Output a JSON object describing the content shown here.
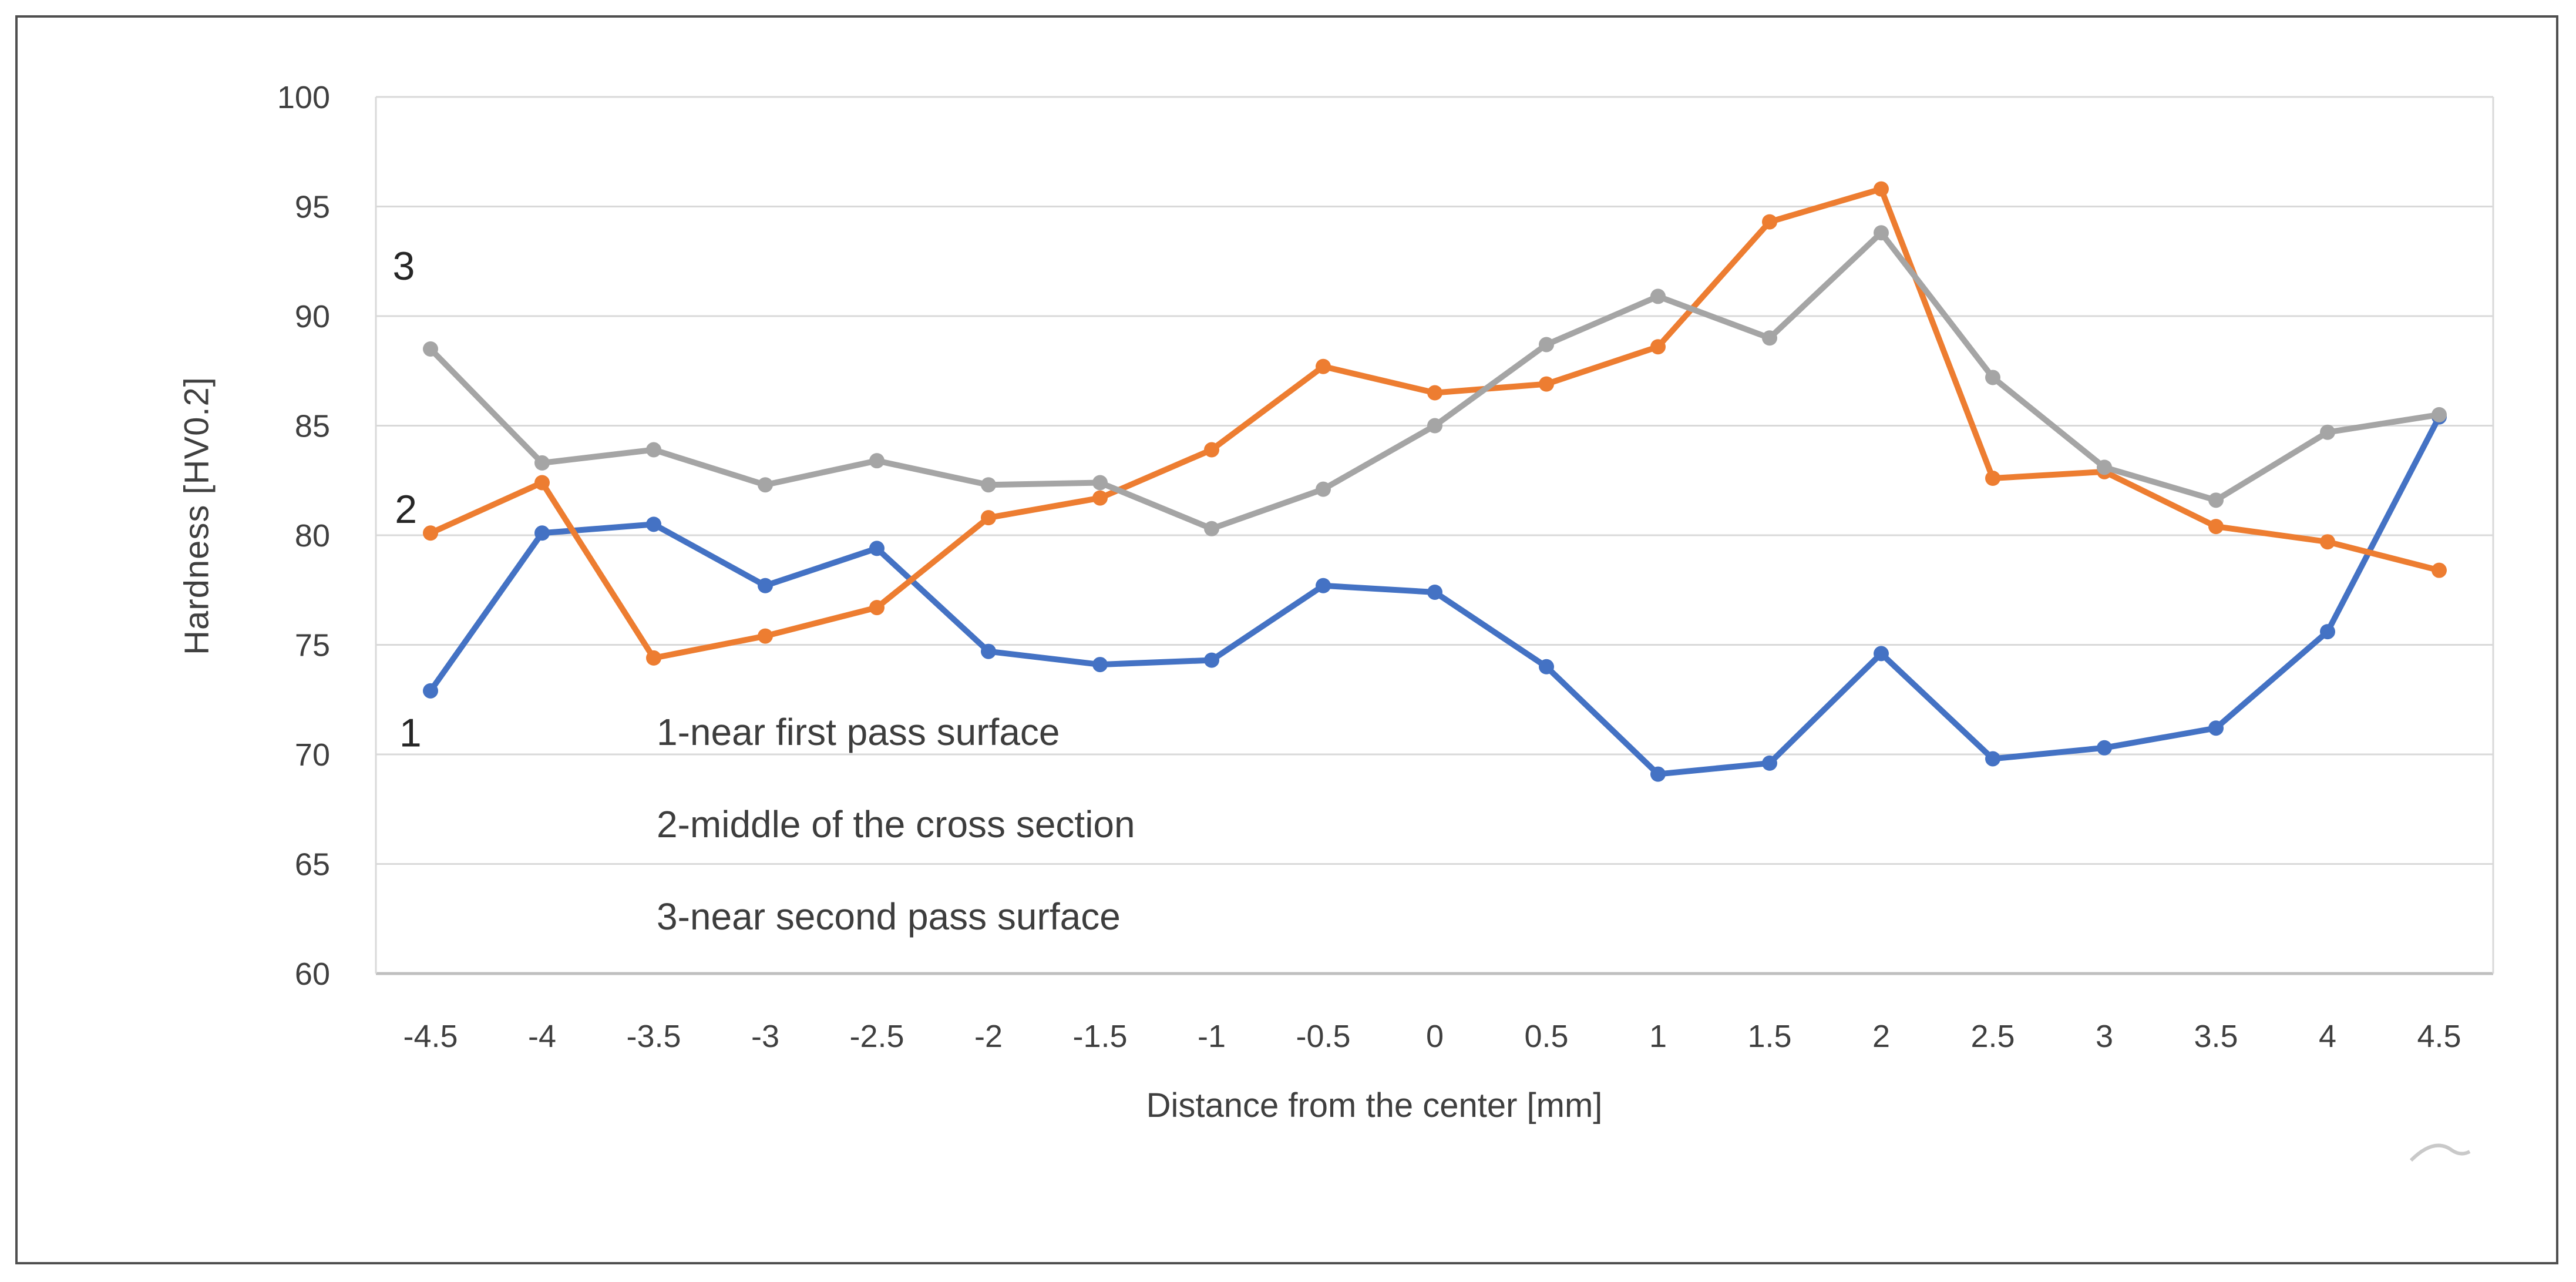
{
  "figure": {
    "background": "#ffffff",
    "border_color": "#4f4f4f"
  },
  "chart_data": {
    "type": "line",
    "title": "",
    "xlabel": "Distance from the center [mm]",
    "ylabel": "Hardness [HV0.2]",
    "x_categories": [
      "-4.5",
      "-4",
      "-3.5",
      "-3",
      "-2.5",
      "-2",
      "-1.5",
      "-1",
      "-0.5",
      "0",
      "0.5",
      "1",
      "1.5",
      "2",
      "2.5",
      "3",
      "3.5",
      "4",
      "4.5"
    ],
    "x_values": [
      -4.5,
      -4,
      -3.5,
      -3,
      -2.5,
      -2,
      -1.5,
      -1,
      -0.5,
      0,
      0.5,
      1,
      1.5,
      2,
      2.5,
      3,
      3.5,
      4,
      4.5
    ],
    "ylim": [
      60,
      100
    ],
    "y_ticks": [
      60,
      65,
      70,
      75,
      80,
      85,
      90,
      95,
      100
    ],
    "grid": true,
    "gridline_color": "#d9d9d9",
    "axis_line_color": "#bfbfbf",
    "tick_label_color": "#3f3f3f",
    "legend_position": "inside-plot-text-annotations",
    "series": [
      {
        "name": "1-near first pass surface",
        "point_label": "1",
        "color": "#4472C4",
        "values": [
          72.9,
          80.1,
          80.5,
          77.7,
          79.4,
          74.7,
          74.1,
          74.3,
          77.7,
          77.4,
          74.0,
          69.1,
          69.6,
          74.6,
          69.8,
          70.3,
          71.2,
          75.6,
          85.4
        ]
      },
      {
        "name": "2-middle of the cross section",
        "point_label": "2",
        "color": "#ED7D31",
        "values": [
          80.1,
          82.4,
          74.4,
          75.4,
          76.7,
          80.8,
          81.7,
          83.9,
          87.7,
          86.5,
          86.9,
          88.6,
          94.3,
          95.8,
          82.6,
          82.9,
          80.4,
          79.7,
          78.4
        ]
      },
      {
        "name": "3-near second pass surface",
        "point_label": "3",
        "color": "#A5A5A5",
        "values": [
          88.5,
          83.3,
          83.9,
          82.3,
          83.4,
          82.3,
          82.4,
          80.3,
          82.1,
          85.0,
          88.7,
          90.9,
          89.0,
          93.8,
          87.2,
          83.1,
          81.6,
          84.7,
          85.5
        ]
      }
    ],
    "annotations": [
      "1-near first pass surface",
      "2-middle of the cross section",
      "3-near second pass surface"
    ],
    "series_point_labels": [
      {
        "text": "1",
        "x": -4.59,
        "y": 71.0
      },
      {
        "text": "2",
        "x": -4.61,
        "y": 81.2
      },
      {
        "text": "3",
        "x": -4.62,
        "y": 92.3
      }
    ]
  }
}
